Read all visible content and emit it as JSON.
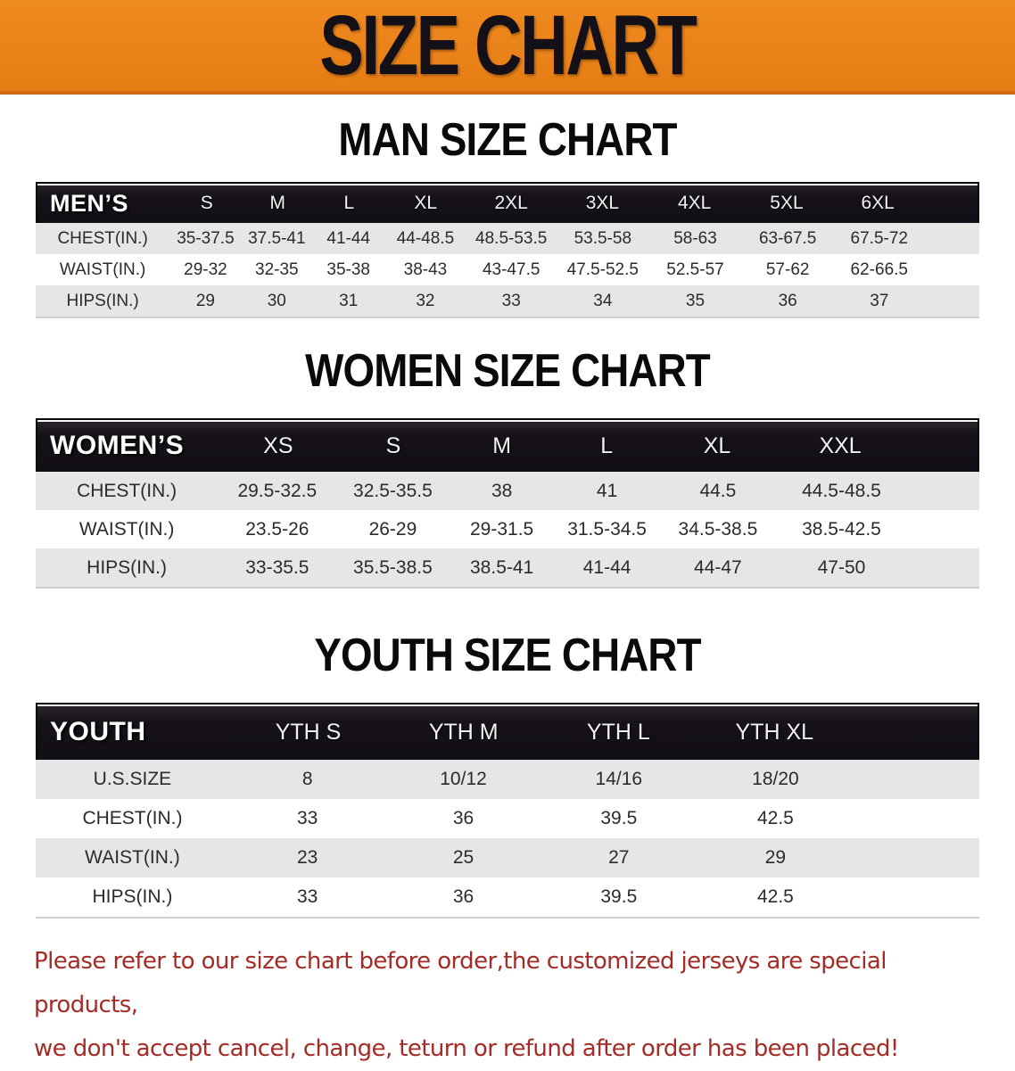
{
  "banner": {
    "title": "SIZE CHART"
  },
  "men": {
    "heading": "MAN SIZE CHART",
    "corner": "MEN’S",
    "cols": [
      "S",
      "M",
      "L",
      "XL",
      "2XL",
      "3XL",
      "4XL",
      "5XL",
      "6XL"
    ],
    "chest": {
      "label": "CHEST(IN.)",
      "values": [
        "35-37.5",
        "37.5-41",
        "41-44",
        "44-48.5",
        "48.5-53.5",
        "53.5-58",
        "58-63",
        "63-67.5",
        "67.5-72"
      ]
    },
    "waist": {
      "label": "WAIST(IN.)",
      "values": [
        "29-32",
        "32-35",
        "35-38",
        "38-43",
        "43-47.5",
        "47.5-52.5",
        "52.5-57",
        "57-62",
        "62-66.5"
      ]
    },
    "hips": {
      "label": "HIPS(IN.)",
      "values": [
        "29",
        "30",
        "31",
        "32",
        "33",
        "34",
        "35",
        "36",
        "37"
      ]
    }
  },
  "women": {
    "heading": "WOMEN SIZE CHART",
    "corner": "WOMEN’S",
    "cols": [
      "XS",
      "S",
      "M",
      "L",
      "XL",
      "XXL"
    ],
    "chest": {
      "label": "CHEST(IN.)",
      "values": [
        "29.5-32.5",
        "32.5-35.5",
        "38",
        "41",
        "44.5",
        "44.5-48.5"
      ]
    },
    "waist": {
      "label": "WAIST(IN.)",
      "values": [
        "23.5-26",
        "26-29",
        "29-31.5",
        "31.5-34.5",
        "34.5-38.5",
        "38.5-42.5"
      ]
    },
    "hips": {
      "label": "HIPS(IN.)",
      "values": [
        "33-35.5",
        "35.5-38.5",
        "38.5-41",
        "41-44",
        "44-47",
        "47-50"
      ]
    }
  },
  "youth": {
    "heading": "YOUTH SIZE CHART",
    "corner": "YOUTH",
    "cols": [
      "YTH S",
      "YTH M",
      "YTH L",
      "YTH XL"
    ],
    "ussize": {
      "label": "U.S.SIZE",
      "values": [
        "8",
        "10/12",
        "14/16",
        "18/20"
      ]
    },
    "chest": {
      "label": "CHEST(IN.)",
      "values": [
        "33",
        "36",
        "39.5",
        "42.5"
      ]
    },
    "waist": {
      "label": "WAIST(IN.)",
      "values": [
        "23",
        "25",
        "27",
        "29"
      ]
    },
    "hips": {
      "label": "HIPS(IN.)",
      "values": [
        "33",
        "36",
        "39.5",
        "42.5"
      ]
    }
  },
  "footer": {
    "line1": "Please refer to our size chart before order,the customized jerseys are special products,",
    "line2": "we don't accept cancel, change, teturn or refund after order has been placed!"
  },
  "colors": {
    "banner_orange": "#e8801a",
    "bar_black": "#17121a",
    "row_gray": "#e6e6e6",
    "footer_red": "#a52b26"
  }
}
